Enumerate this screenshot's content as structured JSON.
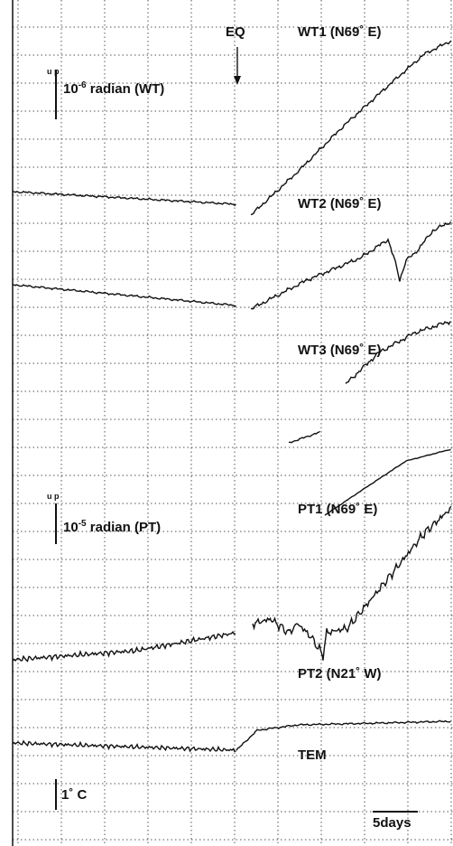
{
  "eq_label": "EQ",
  "traces": [
    {
      "label": "WT1 (N69˚ E)"
    },
    {
      "label": "WT2 (N69˚ E)"
    },
    {
      "label": "WT3 (N69˚ E)"
    },
    {
      "label": "PT1 (N69˚ E)"
    },
    {
      "label": "PT2 (N21˚ W)"
    },
    {
      "label": "TEM"
    }
  ],
  "scales": [
    {
      "up": "u p",
      "base": "10",
      "exp": "-6",
      "rest": " radian (WT)"
    },
    {
      "up": "u p",
      "base": "10",
      "exp": "-5",
      "rest": " radian (PT)"
    }
  ],
  "temp_scale": "1˚ C",
  "time_scale": "5days"
}
